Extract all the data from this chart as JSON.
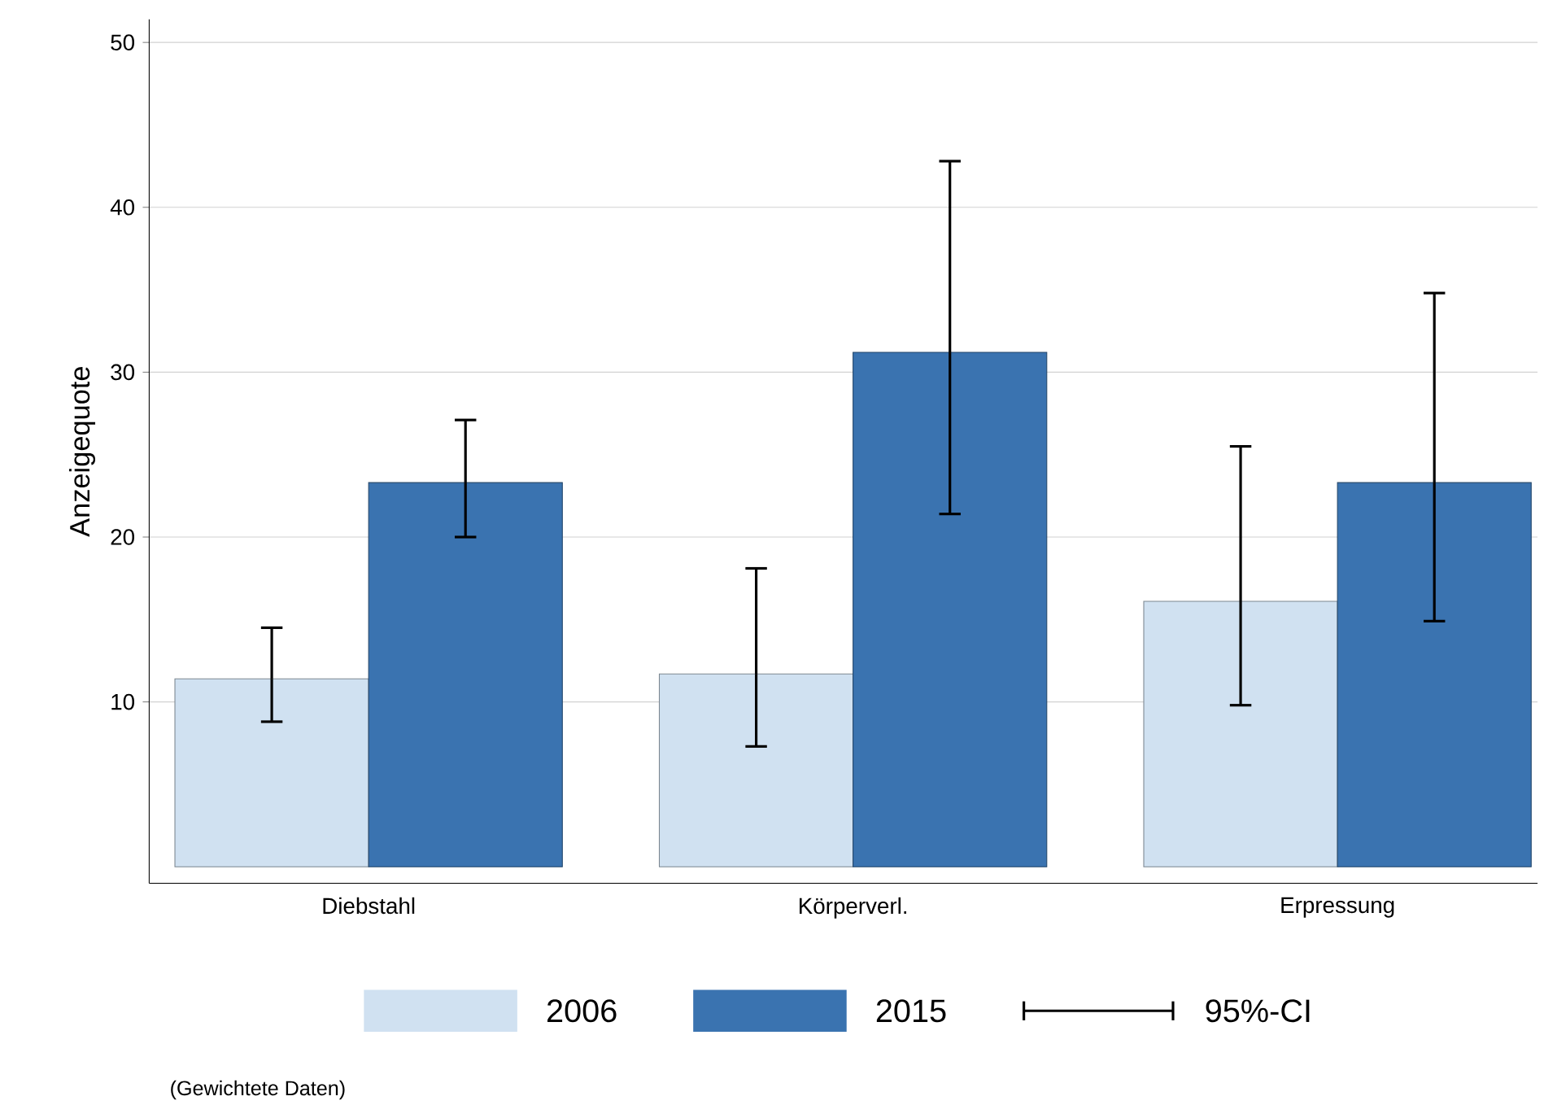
{
  "chart_data": {
    "type": "bar",
    "ylabel": "Anzeigequote",
    "categories": [
      "Diebstahl",
      "Körperverl.",
      "Erpressung"
    ],
    "series": [
      {
        "name": "2006",
        "color": "#d0e1f1",
        "values": [
          11.4,
          11.7,
          16.1
        ],
        "errors": [
          [
            8.8,
            14.5
          ],
          [
            7.3,
            18.1
          ],
          [
            9.8,
            25.5
          ]
        ]
      },
      {
        "name": "2015",
        "color": "#3a73b0",
        "values": [
          23.3,
          31.2,
          23.3
        ],
        "errors": [
          [
            20.0,
            27.1
          ],
          [
            21.4,
            42.8
          ],
          [
            14.9,
            34.8
          ]
        ]
      }
    ],
    "ylim": [
      -1,
      51.4
    ],
    "yticks": [
      10,
      20,
      30,
      40,
      50
    ],
    "grid": "y",
    "legend": "bottom",
    "annotations": [
      "95%-CI",
      "(Gewichtete Daten)"
    ]
  }
}
